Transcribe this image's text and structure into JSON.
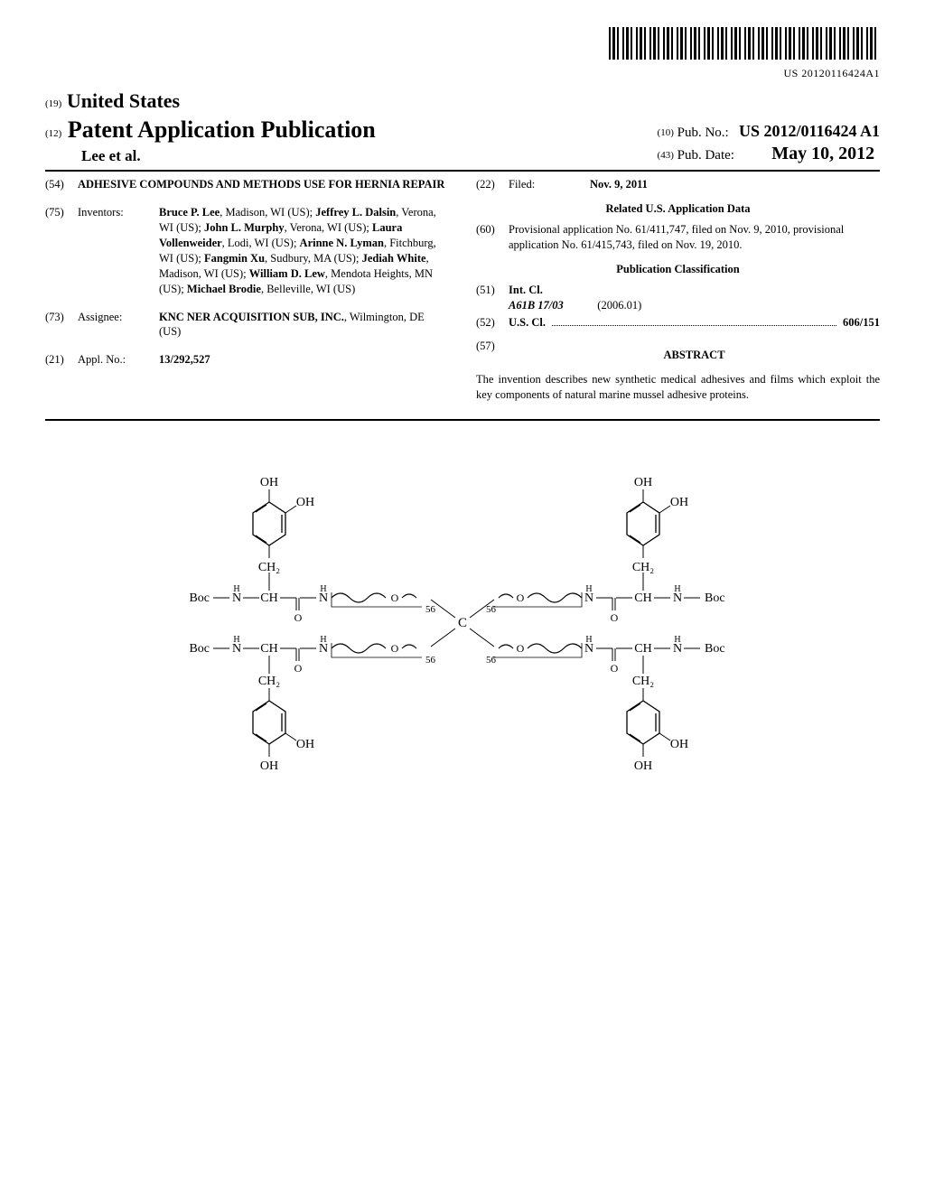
{
  "barcode_text": "US 20120116424A1",
  "header": {
    "country_code": "(19)",
    "country": "United States",
    "doc_type_code": "(12)",
    "doc_type": "Patent Application Publication",
    "author_line": "Lee et al.",
    "pubno_code": "(10)",
    "pubno_label": "Pub. No.:",
    "pubno": "US 2012/0116424 A1",
    "pubdate_code": "(43)",
    "pubdate_label": "Pub. Date:",
    "pubdate": "May 10, 2012"
  },
  "left": {
    "title_code": "(54)",
    "title": "ADHESIVE COMPOUNDS AND METHODS USE FOR HERNIA REPAIR",
    "inventors_code": "(75)",
    "inventors_label": "Inventors:",
    "inventors_html": "Bruce P. Lee, Madison, WI (US); Jeffrey L. Dalsin, Verona, WI (US); John L. Murphy, Verona, WI (US); Laura Vollenweider, Lodi, WI (US); Arinne N. Lyman, Fitchburg, WI (US); Fangmin Xu, Sudbury, MA (US); Jediah White, Madison, WI (US); William D. Lew, Mendota Heights, MN (US); Michael Brodie, Belleville, WI (US)",
    "inventors": [
      {
        "name": "Bruce P. Lee",
        "loc": ", Madison, WI (US);"
      },
      {
        "name": "Jeffrey L. Dalsin",
        "loc": ", Verona, WI (US);"
      },
      {
        "name": "John L. Murphy",
        "loc": ", Verona, WI (US);"
      },
      {
        "name": "Laura Vollenweider",
        "loc": ", Lodi, WI (US);"
      },
      {
        "name": "Arinne N. Lyman",
        "loc": ", Fitchburg, WI (US);"
      },
      {
        "name": "Fangmin Xu",
        "loc": ", Sudbury, MA (US);"
      },
      {
        "name": "Jediah White",
        "loc": ", Madison, WI (US);"
      },
      {
        "name": "William D. Lew",
        "loc": ", Mendota Heights, MN (US);"
      },
      {
        "name": "Michael Brodie",
        "loc": ", Belleville, WI (US)"
      }
    ],
    "assignee_code": "(73)",
    "assignee_label": "Assignee:",
    "assignee_name": "KNC NER ACQUISITION SUB, INC.",
    "assignee_loc": ", Wilmington, DE (US)",
    "applno_code": "(21)",
    "applno_label": "Appl. No.:",
    "applno": "13/292,527"
  },
  "right": {
    "filed_code": "(22)",
    "filed_label": "Filed:",
    "filed": "Nov. 9, 2011",
    "related_head": "Related U.S. Application Data",
    "prov_code": "(60)",
    "prov_text": "Provisional application No. 61/411,747, filed on Nov. 9, 2010, provisional application No. 61/415,743, filed on Nov. 19, 2010.",
    "class_head": "Publication Classification",
    "intcl_code": "(51)",
    "intcl_label": "Int. Cl.",
    "intcl_val": "A61B 17/03",
    "intcl_year": "(2006.01)",
    "uscl_code": "(52)",
    "uscl_label": "U.S. Cl.",
    "uscl_val": "606/151",
    "abstract_code": "(57)",
    "abstract_head": "ABSTRACT",
    "abstract_text": "The invention describes new synthetic medical adhesives and films which exploit the key components of natural marine mussel adhesive proteins."
  },
  "figure": {
    "repeat_n": "56",
    "boc": "Boc",
    "oh": "OH",
    "ch2": "CH₂",
    "n": "N",
    "h": "H",
    "o": "O",
    "c": "C"
  }
}
